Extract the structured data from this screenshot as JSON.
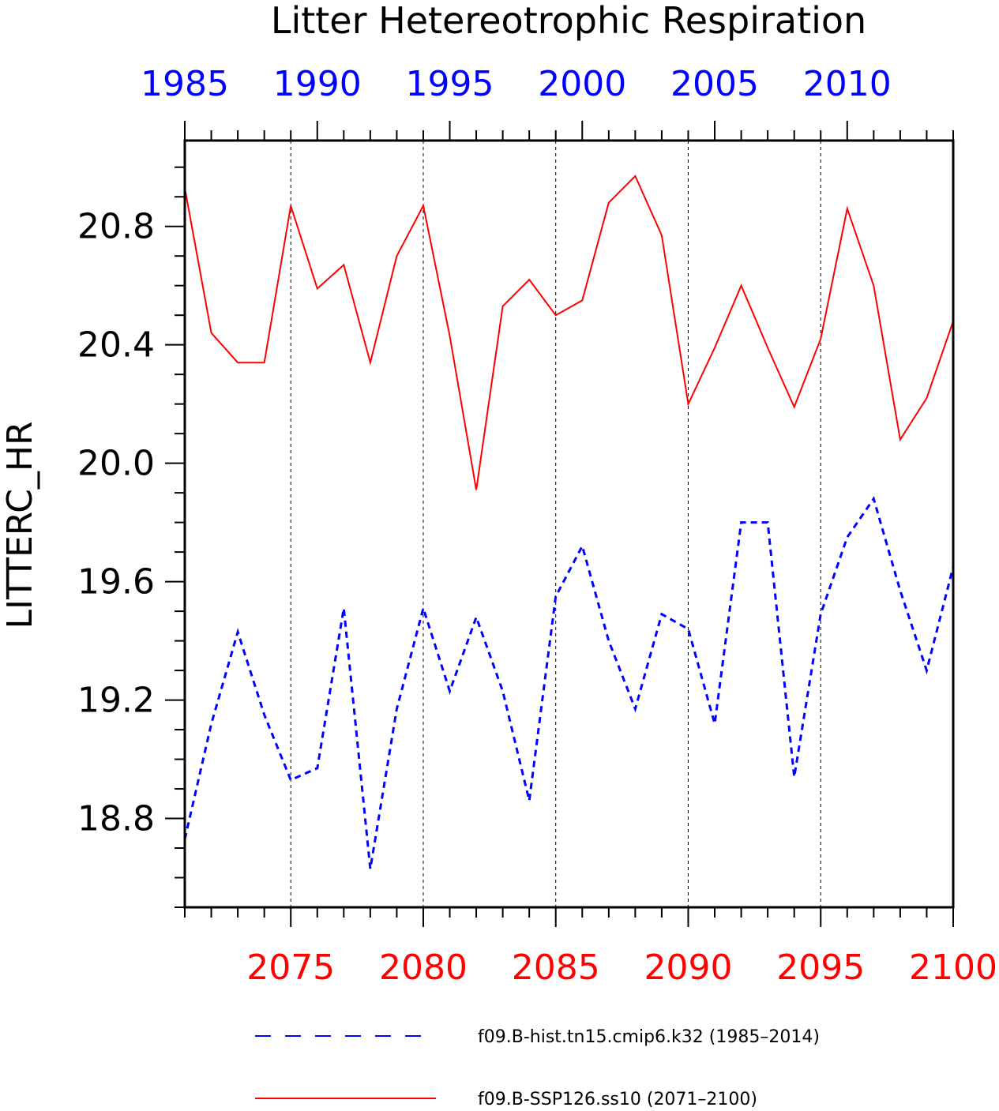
{
  "chart_data": {
    "type": "line",
    "title": "Litter Hetereotrophic Respiration",
    "ylabel": "LITTERC_HR",
    "ylim": [
      18.5,
      21.09
    ],
    "yticks": [
      "18.8",
      "19.2",
      "19.6",
      "20.0",
      "20.4",
      "20.8"
    ],
    "bottom_axis": {
      "range": [
        2071,
        2100
      ],
      "tick_labels": [
        "2075",
        "2080",
        "2085",
        "2090",
        "2095",
        "2100"
      ],
      "color": "#ff0000"
    },
    "top_axis": {
      "range": [
        1985,
        2014
      ],
      "tick_labels": [
        "1985",
        "1990",
        "1995",
        "2000",
        "2005",
        "2010"
      ],
      "color": "#0000ff"
    },
    "grid": "vertical dashed at major ticks",
    "legend_position": "bottom",
    "series": [
      {
        "name": "f09.B-hist.tn15.cmip6.k32 (1985–2014)",
        "axis": "top",
        "color": "#0000ff",
        "style": "dashed",
        "x": [
          1985,
          1986,
          1987,
          1988,
          1989,
          1990,
          1991,
          1992,
          1993,
          1994,
          1995,
          1996,
          1997,
          1998,
          1999,
          2000,
          2001,
          2002,
          2003,
          2004,
          2005,
          2006,
          2007,
          2008,
          2009,
          2010,
          2011,
          2012,
          2013,
          2014
        ],
        "values": [
          18.73,
          19.12,
          19.43,
          19.15,
          18.93,
          18.97,
          19.51,
          18.63,
          19.17,
          19.51,
          19.23,
          19.48,
          19.23,
          18.86,
          19.55,
          19.72,
          19.4,
          19.17,
          19.49,
          19.44,
          19.12,
          19.8,
          19.8,
          18.94,
          19.49,
          19.75,
          19.88,
          19.57,
          19.3,
          19.65
        ]
      },
      {
        "name": "f09.B-SSP126.ss10 (2071–2100)",
        "axis": "bottom",
        "color": "#ff0000",
        "style": "solid",
        "x": [
          2071,
          2072,
          2073,
          2074,
          2075,
          2076,
          2077,
          2078,
          2079,
          2080,
          2081,
          2082,
          2083,
          2084,
          2085,
          2086,
          2087,
          2088,
          2089,
          2090,
          2091,
          2092,
          2093,
          2094,
          2095,
          2096,
          2097,
          2098,
          2099,
          2100
        ],
        "values": [
          20.93,
          20.44,
          20.34,
          20.34,
          20.87,
          20.59,
          20.67,
          20.34,
          20.7,
          20.87,
          20.43,
          19.91,
          20.53,
          20.62,
          20.5,
          20.55,
          20.88,
          20.97,
          20.77,
          20.2,
          20.39,
          20.6,
          20.39,
          20.19,
          20.42,
          20.86,
          20.6,
          20.08,
          20.22,
          20.48
        ]
      }
    ]
  }
}
